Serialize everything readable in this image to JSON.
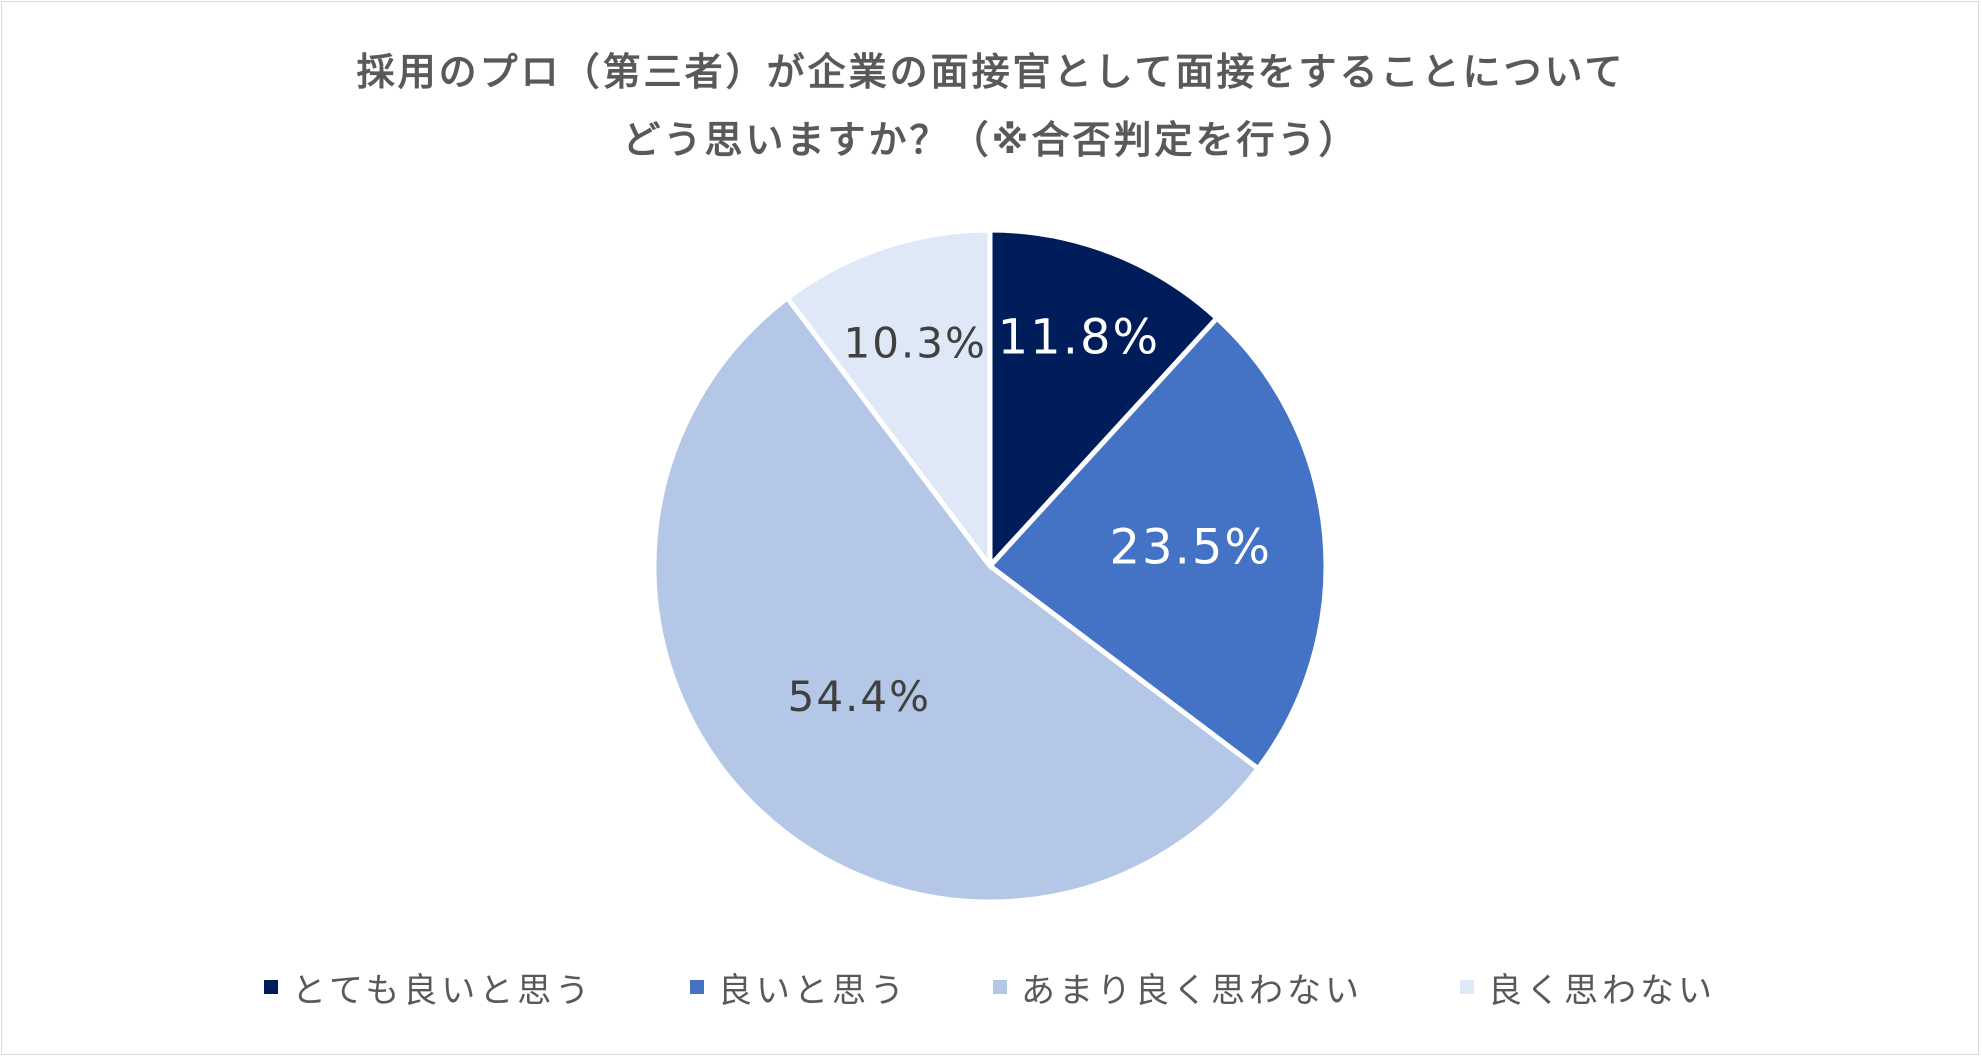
{
  "chart_data": {
    "type": "pie",
    "title_lines": [
      "採用のプロ（第三者）が企業の面接官として面接をすることについて",
      "どう思いますか？（※合否判定を行う）"
    ],
    "slices": [
      {
        "label": "とても良いと思う",
        "value": 11.8,
        "display": "11.8%",
        "color": "#001d5b",
        "label_color": "#ffffff"
      },
      {
        "label": "良いと思う",
        "value": 23.5,
        "display": "23.5%",
        "color": "#4472c4",
        "label_color": "#ffffff"
      },
      {
        "label": "あまり良く思わない",
        "value": 54.4,
        "display": "54.4%",
        "color": "#b4c7e7",
        "label_color": "#404040"
      },
      {
        "label": "良く思わない",
        "value": 10.3,
        "display": "10.3%",
        "color": "#dee8f6",
        "label_color": "#404040"
      }
    ],
    "legend_position": "bottom",
    "start_angle": "12 o'clock, clockwise"
  }
}
